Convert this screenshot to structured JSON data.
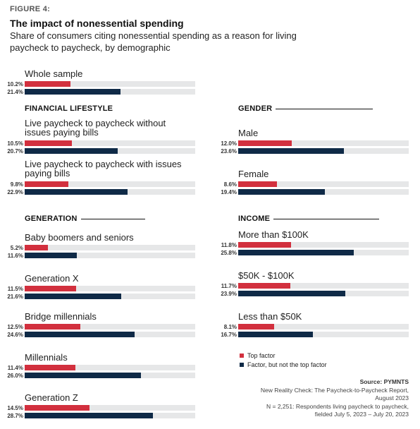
{
  "figure_label": "FIGURE 4:",
  "title": "The impact of nonessential spending",
  "subtitle": "Share of consumers citing nonessential spending as a reason for living paycheck to paycheck, by demographic",
  "colors": {
    "top_factor": "#d2303e",
    "factor_not_top": "#0f2a47",
    "track": "#e6e7e8"
  },
  "legend": [
    {
      "label": "Top factor",
      "color": "#d2303e"
    },
    {
      "label": "Factor, but not the top factor",
      "color": "#0f2a47"
    }
  ],
  "source": {
    "label": "Source: PYMNTS",
    "line1": "New Reality Check: The Paycheck-to-Paycheck Report,",
    "line2": "August 2023",
    "line3": "N = 2,251: Respondents living paycheck to paycheck,",
    "line4": "fielded July 5, 2023 – July 20, 2023"
  },
  "chart_data": {
    "type": "bar",
    "orientation": "horizontal",
    "xlim": [
      0,
      100
    ],
    "series_names": [
      "Top factor",
      "Factor, but not the top factor"
    ],
    "groups": [
      {
        "id": "whole",
        "heading": "",
        "categories": [
          {
            "label": "Whole sample",
            "top": 10.2,
            "not_top": 21.4,
            "top_label": "10.2%",
            "not_top_label": "21.4%"
          }
        ]
      },
      {
        "id": "financial",
        "heading": "FINANCIAL LIFESTYLE",
        "categories": [
          {
            "label": "Live paycheck to paycheck without issues paying bills",
            "top": 10.5,
            "not_top": 20.7,
            "top_label": "10.5%",
            "not_top_label": "20.7%"
          },
          {
            "label": "Live paycheck to paycheck with issues paying bills",
            "top": 9.8,
            "not_top": 22.9,
            "top_label": "9.8%",
            "not_top_label": "22.9%"
          }
        ]
      },
      {
        "id": "gender",
        "heading": "GENDER",
        "categories": [
          {
            "label": "Male",
            "top": 12.0,
            "not_top": 23.6,
            "top_label": "12.0%",
            "not_top_label": "23.6%"
          },
          {
            "label": "Female",
            "top": 8.6,
            "not_top": 19.4,
            "top_label": "8.6%",
            "not_top_label": "19.4%"
          }
        ]
      },
      {
        "id": "generation",
        "heading": "GENERATION",
        "categories": [
          {
            "label": "Baby boomers and seniors",
            "top": 5.2,
            "not_top": 11.6,
            "top_label": "5.2%",
            "not_top_label": "11.6%"
          },
          {
            "label": "Generation X",
            "top": 11.5,
            "not_top": 21.6,
            "top_label": "11.5%",
            "not_top_label": "21.6%"
          },
          {
            "label": "Bridge millennials",
            "top": 12.5,
            "not_top": 24.6,
            "top_label": "12.5%",
            "not_top_label": "24.6%"
          },
          {
            "label": "Millennials",
            "top": 11.4,
            "not_top": 26.0,
            "top_label": "11.4%",
            "not_top_label": "26.0%"
          },
          {
            "label": "Generation Z",
            "top": 14.5,
            "not_top": 28.7,
            "top_label": "14.5%",
            "not_top_label": "28.7%"
          }
        ]
      },
      {
        "id": "income",
        "heading": "INCOME",
        "categories": [
          {
            "label": "More than $100K",
            "top": 11.8,
            "not_top": 25.8,
            "top_label": "11.8%",
            "not_top_label": "25.8%"
          },
          {
            "label": "$50K - $100K",
            "top": 11.7,
            "not_top": 23.9,
            "top_label": "11.7%",
            "not_top_label": "23.9%"
          },
          {
            "label": "Less than $50K",
            "top": 8.1,
            "not_top": 16.7,
            "top_label": "8.1%",
            "not_top_label": "16.7%"
          }
        ]
      }
    ]
  }
}
